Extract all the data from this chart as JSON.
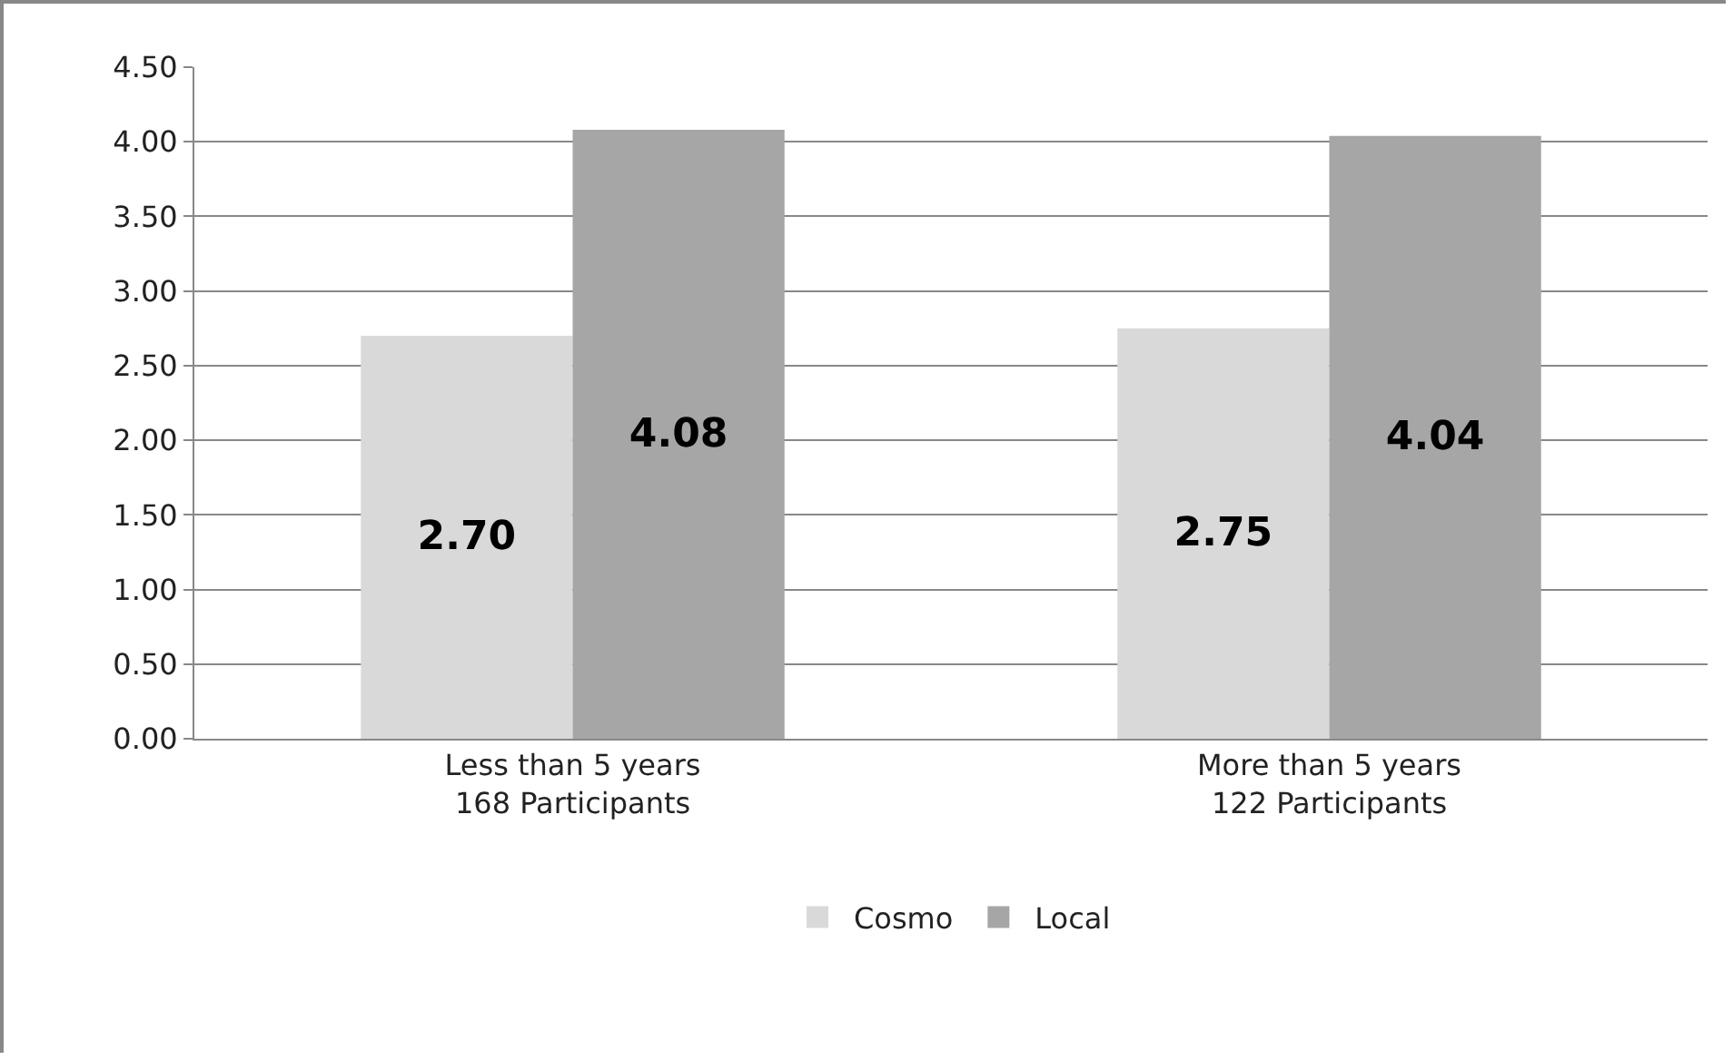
{
  "chart_data": {
    "type": "bar",
    "categories": [
      "Less than 5 years\n168 Participants",
      "More than 5 years\n122 Participants"
    ],
    "series": [
      {
        "name": "Cosmo",
        "color": "#d9d9d9",
        "values": [
          2.7,
          2.75
        ],
        "value_labels": [
          "2.70",
          "2.75"
        ]
      },
      {
        "name": "Local",
        "color": "#a6a6a6",
        "values": [
          4.08,
          4.04
        ],
        "value_labels": [
          "4.08",
          "4.04"
        ]
      }
    ],
    "ylim": [
      0,
      4.5
    ],
    "yticks": [
      {
        "value": 0,
        "label": "0.00"
      },
      {
        "value": 0.5,
        "label": "0.50"
      },
      {
        "value": 1,
        "label": "1.00"
      },
      {
        "value": 1.5,
        "label": "1.50"
      },
      {
        "value": 2,
        "label": "2.00"
      },
      {
        "value": 2.5,
        "label": "2.50"
      },
      {
        "value": 3,
        "label": "3.00"
      },
      {
        "value": 3.5,
        "label": "3.50"
      },
      {
        "value": 4,
        "label": "4.00"
      },
      {
        "value": 4.5,
        "label": "4.50"
      }
    ],
    "grid": "y",
    "legend": "bottom"
  }
}
